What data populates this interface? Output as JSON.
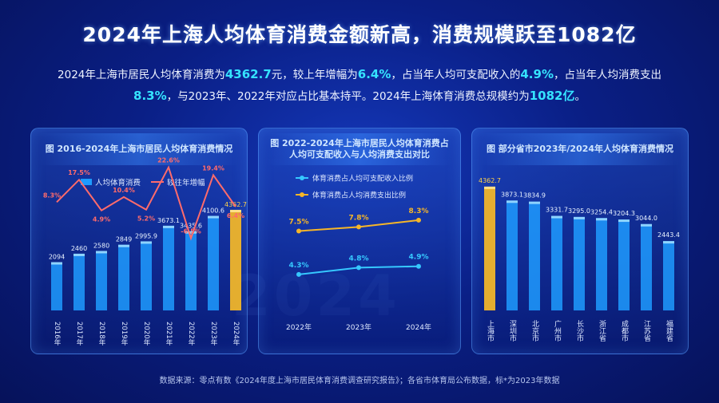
{
  "header": {
    "title": "2024年上海人均体育消费金额新高，消费规模跃至1082亿"
  },
  "summary": {
    "t1": "2024年上海市居民人均体育消费为",
    "v1": "4362.7",
    "t2": "元，较上年增幅为",
    "v2": "6.4%",
    "t3": "，占当年人均可支配收入的",
    "v3": "4.9%",
    "t4": "，占当年人均消费支出",
    "v4": "8.3%",
    "t5": "，与2023年、2022年对应占比基本持平。2024年上海体育消费总规模约为",
    "v5": "1082亿",
    "t6": "。"
  },
  "colors": {
    "bar": "#1e9bff",
    "bar_highlight": "#f0b52a",
    "growth_line": "#ff6b6b",
    "income_line": "#36c8ff",
    "expend_line": "#f6b628",
    "accent": "#35e3ff"
  },
  "chart_data": [
    {
      "type": "bar",
      "title": "图 2016-2024年上海市居民人均体育消费情况",
      "legend": [
        "人均体育消费",
        "较往年增幅"
      ],
      "categories": [
        "2016年",
        "2017年",
        "2018年",
        "2019年",
        "2020年",
        "2021年",
        "2022年",
        "2023年",
        "2024年"
      ],
      "series": [
        {
          "name": "人均体育消费",
          "values": [
            2094,
            2460,
            2580,
            2849,
            2995.9,
            3673.1,
            3435.6,
            4100.6,
            4362.7
          ],
          "labels": [
            "2094",
            "2460",
            "2580",
            "2849",
            "2995.9",
            "3673.1",
            "3435.6",
            "4100.6",
            "4362.7"
          ]
        },
        {
          "name": "较往年增幅",
          "values": [
            8.3,
            17.5,
            4.9,
            10.4,
            5.2,
            22.6,
            -6.5,
            19.4,
            6.4
          ],
          "labels": [
            "8.3%",
            "17.5%",
            "4.9%",
            "10.4%",
            "5.2%",
            "22.6%",
            "-6.5%",
            "19.4%",
            "6.4%"
          ]
        }
      ],
      "highlight_index": 8
    },
    {
      "type": "line",
      "title": "图 2022-2024年上海市居民人均体育消费占人均可支配收入与人均消费支出对比",
      "categories": [
        "2022年",
        "2023年",
        "2024年"
      ],
      "series": [
        {
          "name": "体育消费占人均可支配收入比例",
          "values": [
            4.3,
            4.8,
            4.9
          ],
          "labels": [
            "4.3%",
            "4.8%",
            "4.9%"
          ]
        },
        {
          "name": "体育消费占人均消费支出比例",
          "values": [
            7.5,
            7.8,
            8.3
          ],
          "labels": [
            "7.5%",
            "7.8%",
            "8.3%"
          ]
        }
      ]
    },
    {
      "type": "bar",
      "title": "图 部分省市2023年/2024年人均体育消费情况",
      "categories": [
        "上海市",
        "深圳市",
        "北京市",
        "广州市",
        "长沙市",
        "浙江省",
        "成都市",
        "江苏省",
        "福建省"
      ],
      "series": [
        {
          "name": "人均体育消费",
          "values": [
            4362.7,
            3873.1,
            3834.9,
            3331.7,
            3295.0,
            3254.4,
            3204.3,
            3044.0,
            2443.4
          ],
          "labels": [
            "4362.7",
            "3873.1",
            "3834.9",
            "3331.7",
            "3295.0",
            "3254.4",
            "3204.3",
            "3044.0",
            "2443.4"
          ]
        }
      ],
      "highlight_index": 0
    }
  ],
  "footer": {
    "source": "数据来源：零点有数《2024年度上海市居民体育消费调查研究报告》；各省市体育局公布数据，标*为2023年数据"
  }
}
